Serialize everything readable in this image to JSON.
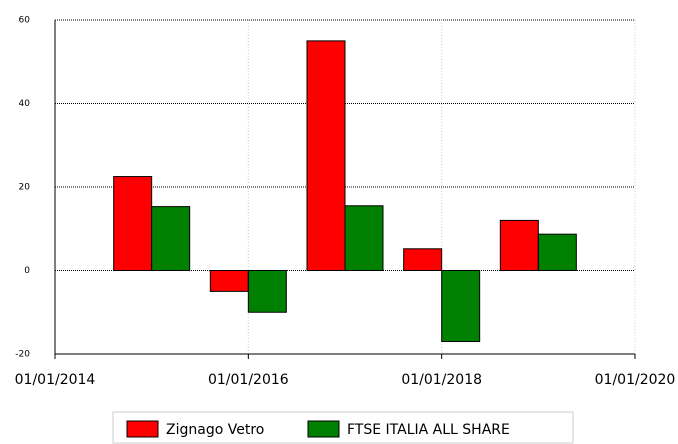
{
  "chart_data": {
    "type": "bar",
    "x": [
      2015,
      2016,
      2017,
      2018,
      2019
    ],
    "series": [
      {
        "name": "Zignago Vetro",
        "color": "#ff0000",
        "values": [
          22.5,
          -5,
          55,
          5.2,
          12
        ]
      },
      {
        "name": "FTSE ITALIA ALL SHARE",
        "color": "#008000",
        "values": [
          15.3,
          -10,
          15.5,
          -17,
          8.7
        ]
      }
    ],
    "xlim": [
      2014,
      2020
    ],
    "xticks": [
      {
        "value": 2014,
        "label": "01/01/2014"
      },
      {
        "value": 2016,
        "label": "01/01/2016"
      },
      {
        "value": 2018,
        "label": "01/01/2018"
      },
      {
        "value": 2020,
        "label": "01/01/2020"
      }
    ],
    "ylim": [
      -20,
      60
    ],
    "yticks": [
      -20,
      0,
      20,
      40,
      60
    ],
    "grid": true,
    "legend": "bottom"
  }
}
